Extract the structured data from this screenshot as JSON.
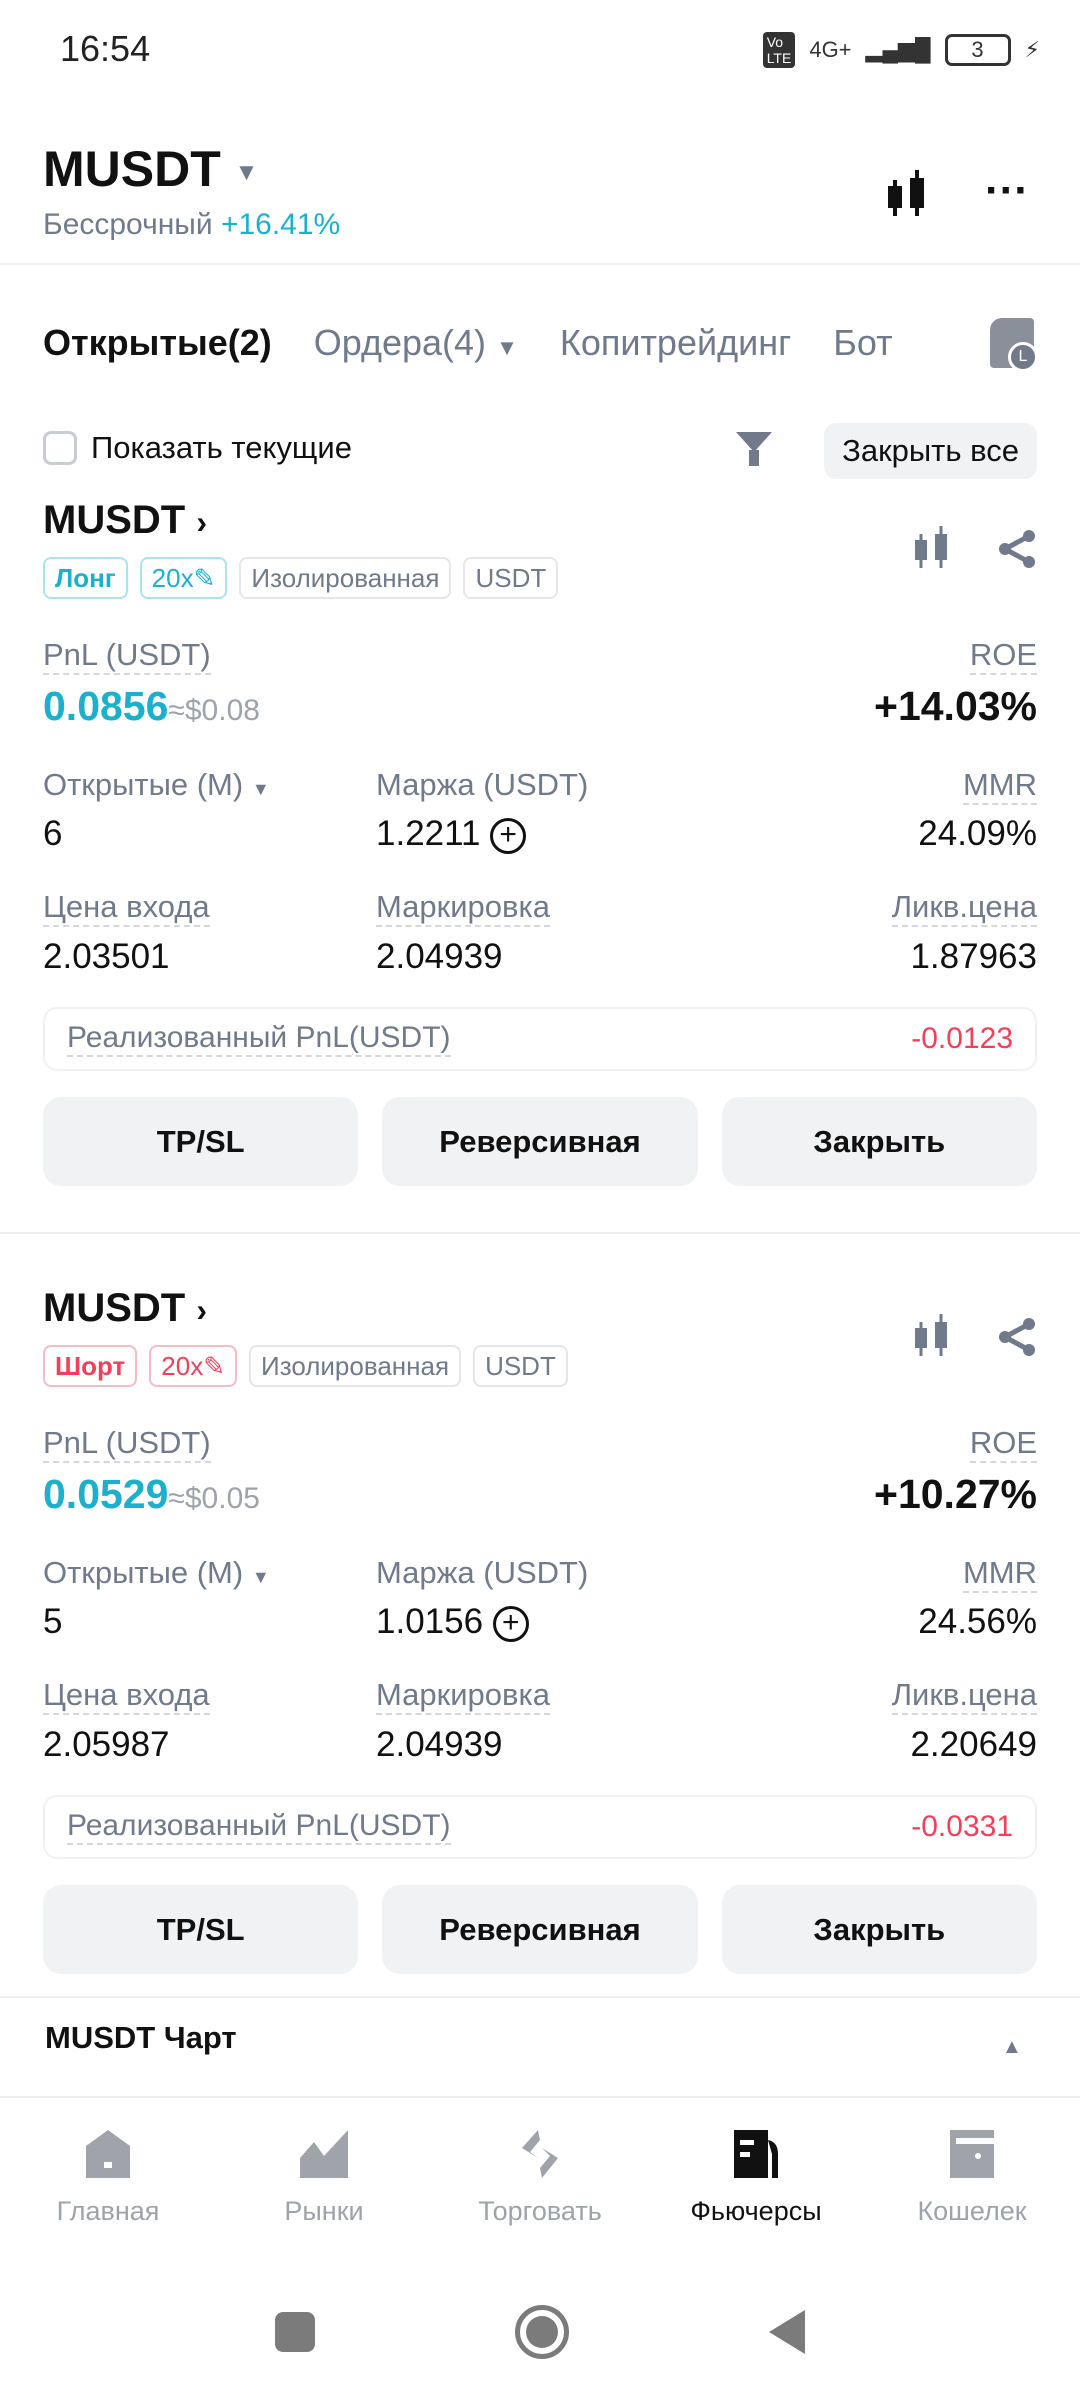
{
  "status_bar": {
    "time": "16:54",
    "network": "4G+",
    "battery": "3"
  },
  "header": {
    "title": "MUSDT",
    "subtitle": "Бессрочный",
    "change": "+16.41%"
  },
  "tabs": [
    {
      "label": "Открытые(2)"
    },
    {
      "label": "Ордера(4)"
    },
    {
      "label": "Копитрейдинг"
    },
    {
      "label": "Бот"
    }
  ],
  "filter": {
    "show_current": "Показать текущие",
    "close_all": "Закрыть все"
  },
  "labels": {
    "pnl": "PnL (USDT)",
    "roe": "ROE",
    "open": "Открытые (M)",
    "margin": "Маржа (USDT)",
    "mmr": "MMR",
    "entry": "Цена входа",
    "mark": "Маркировка",
    "liq": "Ликв.цена",
    "realized": "Реализованный PnL(USDT)",
    "tpsl": "TP/SL",
    "reverse": "Реверсивная",
    "close": "Закрыть"
  },
  "positions": [
    {
      "symbol": "MUSDT",
      "side": "Лонг",
      "leverage": "20x",
      "mode": "Изолированная",
      "currency": "USDT",
      "pnl": "0.0856",
      "pnl_usd": "≈$0.08",
      "roe": "+14.03%",
      "open": "6",
      "margin": "1.2211",
      "mmr": "24.09%",
      "entry": "2.03501",
      "mark": "2.04939",
      "liq": "1.87963",
      "realized": "-0.0123"
    },
    {
      "symbol": "MUSDT",
      "side": "Шорт",
      "leverage": "20x",
      "mode": "Изолированная",
      "currency": "USDT",
      "pnl": "0.0529",
      "pnl_usd": "≈$0.05",
      "roe": "+10.27%",
      "open": "5",
      "margin": "1.0156",
      "mmr": "24.56%",
      "entry": "2.05987",
      "mark": "2.04939",
      "liq": "2.20649",
      "realized": "-0.0331"
    }
  ],
  "chart_section": {
    "label": "MUSDT Чарт"
  },
  "bottom_nav": [
    {
      "label": "Главная"
    },
    {
      "label": "Рынки"
    },
    {
      "label": "Торговать"
    },
    {
      "label": "Фьючерсы",
      "active": true
    },
    {
      "label": "Кошелек"
    }
  ],
  "colors": {
    "teal": "#1cb0cc",
    "red": "#f0405a",
    "orange": "#f5a524"
  }
}
